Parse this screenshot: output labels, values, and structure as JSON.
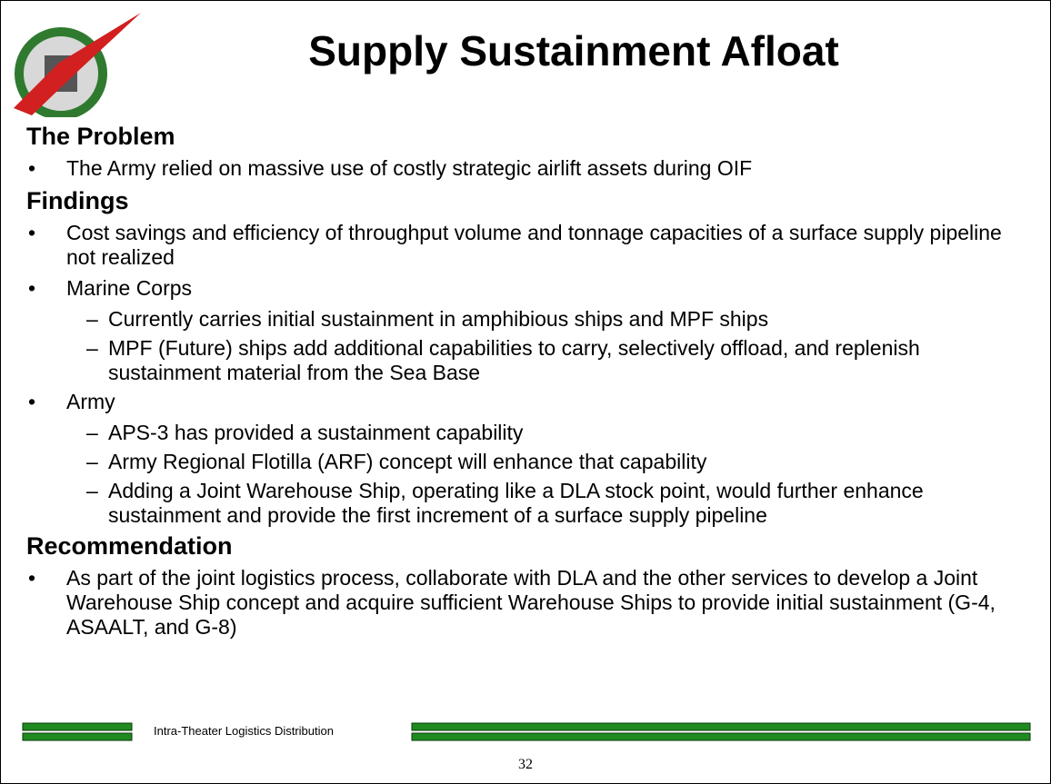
{
  "title": "Supply Sustainment Afloat",
  "sections": [
    {
      "heading": "The Problem",
      "items": [
        {
          "text": "The Army relied on massive use of costly strategic airlift assets during OIF",
          "subitems": []
        }
      ]
    },
    {
      "heading": "Findings",
      "items": [
        {
          "text": "Cost savings and efficiency of throughput volume and tonnage capacities of a surface supply pipeline not realized",
          "subitems": []
        },
        {
          "text": "Marine Corps",
          "subitems": [
            "Currently carries initial sustainment in amphibious ships and MPF ships",
            "MPF (Future) ships add additional capabilities to carry, selectively offload, and replenish sustainment material from the Sea Base"
          ]
        },
        {
          "text": "Army",
          "subitems": [
            "APS-3 has provided a sustainment capability",
            "Army Regional Flotilla (ARF) concept will enhance that capability",
            "Adding a Joint Warehouse Ship, operating like a DLA stock point, would further enhance sustainment and provide the first increment of a surface supply pipeline"
          ]
        }
      ]
    },
    {
      "heading": "Recommendation",
      "items": [
        {
          "text": "As part of the joint logistics process, collaborate with DLA and the other services to develop a Joint Warehouse Ship concept and acquire sufficient Warehouse Ships to provide initial sustainment (G-4, ASAALT, and G-8)",
          "subitems": []
        }
      ]
    }
  ],
  "footer": "Intra-Theater Logistics Distribution",
  "page_number": "32"
}
